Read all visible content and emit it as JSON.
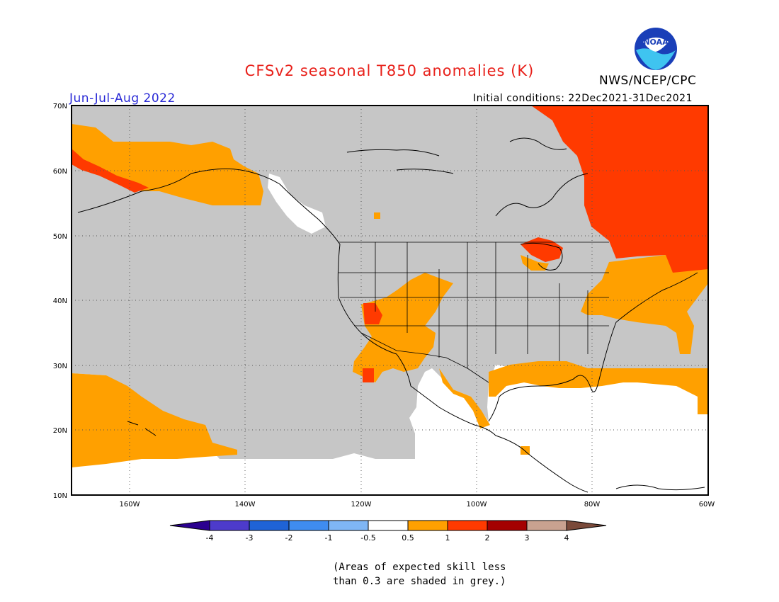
{
  "title": "CFSv2 seasonal T850 anomalies (K)",
  "agency": "NWS/NCEP/CPC",
  "logo_text": "NOAA",
  "season": "Jun-Jul-Aug 2022",
  "initial_conditions": "Initial conditions: 22Dec2021-31Dec2021",
  "map": {
    "lon_range": [
      -170,
      -60
    ],
    "lat_range": [
      10,
      70
    ],
    "lat_ticks": [
      "70N",
      "60N",
      "50N",
      "40N",
      "30N",
      "20N",
      "10N"
    ],
    "lon_ticks": [
      "160W",
      "140W",
      "120W",
      "100W",
      "80W",
      "60W"
    ],
    "grid": true,
    "colors": {
      "low_skill_grey": "#c6c6c6",
      "anom_0_5_to_1": "#ffa000",
      "anom_1_to_2": "#ff3a00",
      "near_normal": "#ffffff"
    }
  },
  "legend": {
    "labels": [
      "-4",
      "-3",
      "-2",
      "-1",
      "-0.5",
      "0.5",
      "1",
      "2",
      "3",
      "4"
    ],
    "colors": [
      "#2b008f",
      "#4d3bcb",
      "#1f63d6",
      "#3f8cf0",
      "#7fb6f5",
      "#ffffff",
      "#ffa000",
      "#ff3a00",
      "#a40000",
      "#c9a290",
      "#7a4a3a"
    ]
  },
  "footnote": [
    "(Areas of expected skill less",
    "than 0.3 are shaded in grey.)"
  ]
}
